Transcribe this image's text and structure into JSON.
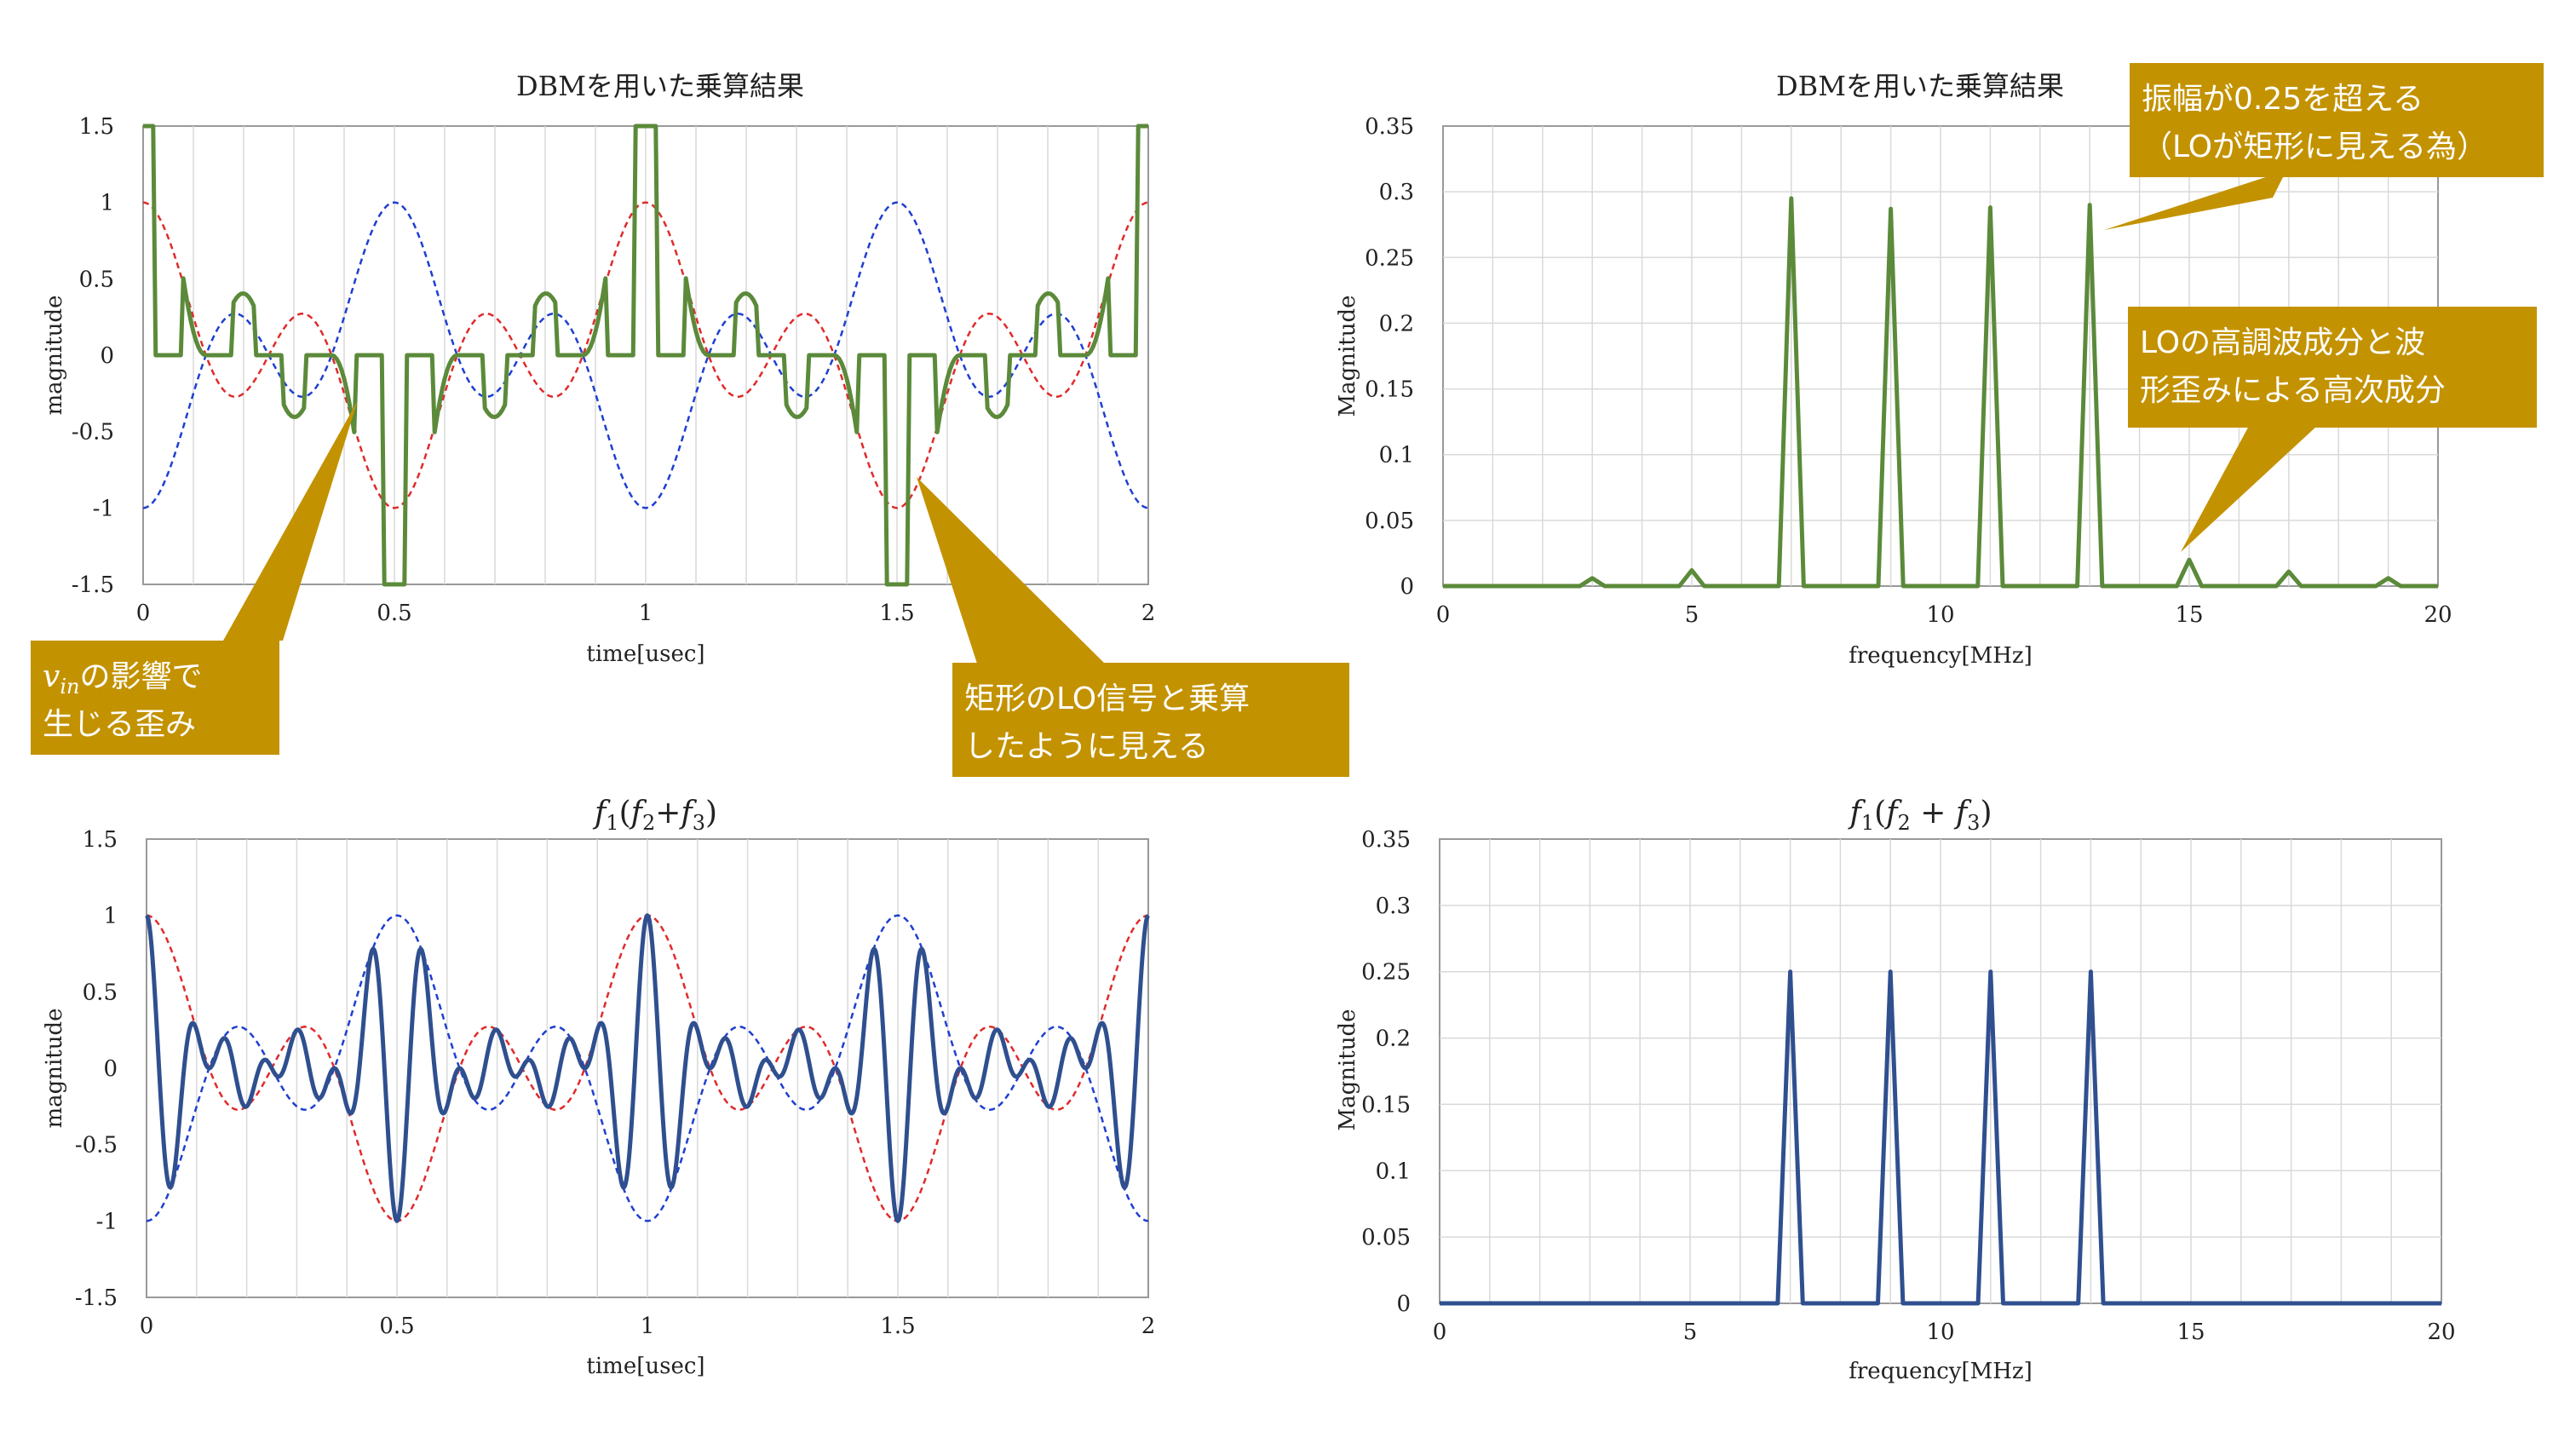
{
  "chart_data": [
    {
      "id": "dbm-time",
      "type": "line",
      "title": "DBMを用いた乗算結果",
      "xlabel": "time[usec]",
      "ylabel": "magnitude",
      "xlim": [
        0,
        2
      ],
      "ylim": [
        -1.5,
        1.5
      ],
      "x_ticks": [
        "0",
        "0.5",
        "1",
        "1.5",
        "2"
      ],
      "y_ticks": [
        "-1.5",
        "-1",
        "-0.5",
        "0",
        "0.5",
        "1",
        "1.5"
      ],
      "grid": "vertical",
      "legend": "none",
      "series": [
        {
          "color": "#e02b2b",
          "style": "dashed",
          "formula": "cos(2*pi*1*t)*cos(2*pi*2*t)"
        },
        {
          "color": "#1f3fd0",
          "style": "dashed",
          "formula": "-cos(2*pi*1*t)*cos(2*pi*2*t)"
        },
        {
          "color": "#5b8a3a",
          "style": "solid",
          "formula": "cos(2*pi*2*t)*(cos(2*pi*1*t)+cos(2*pi*3*t))*sign(cos(2*pi*10*t))",
          "sample_step": 0.005
        }
      ]
    },
    {
      "id": "dbm-freq",
      "type": "line",
      "title": "DBMを用いた乗算結果",
      "xlabel": "frequency[MHz]",
      "ylabel": "Magnitude",
      "xlim": [
        0,
        20
      ],
      "ylim": [
        0,
        0.35
      ],
      "x_ticks": [
        "0",
        "5",
        "10",
        "15",
        "20"
      ],
      "y_ticks": [
        "0",
        "0.05",
        "0.1",
        "0.15",
        "0.2",
        "0.25",
        "0.3",
        "0.35"
      ],
      "grid": "both",
      "legend": "none",
      "series": [
        {
          "color": "#5b8a3a",
          "style": "solid",
          "peaks": [
            [
              3,
              0.006
            ],
            [
              5,
              0.012
            ],
            [
              7,
              0.295
            ],
            [
              9,
              0.287
            ],
            [
              11,
              0.288
            ],
            [
              13,
              0.29
            ],
            [
              15,
              0.02
            ],
            [
              17,
              0.011
            ],
            [
              19,
              0.006
            ]
          ],
          "peak_halfwidth": 0.25
        }
      ]
    },
    {
      "id": "ideal-time",
      "type": "line",
      "title": "f1(f2+f3)",
      "xlabel": "time[usec]",
      "ylabel": "magnitude",
      "xlim": [
        0,
        2
      ],
      "ylim": [
        -1.5,
        1.5
      ],
      "x_ticks": [
        "0",
        "0.5",
        "1",
        "1.5",
        "2"
      ],
      "y_ticks": [
        "-1.5",
        "-1",
        "-0.5",
        "0",
        "0.5",
        "1",
        "1.5"
      ],
      "grid": "vertical",
      "legend": "none",
      "series": [
        {
          "color": "#e02b2b",
          "style": "dashed",
          "formula": "cos(2*pi*1*t)*cos(2*pi*2*t)"
        },
        {
          "color": "#1f3fd0",
          "style": "dashed",
          "formula": "-cos(2*pi*1*t)*cos(2*pi*2*t)"
        },
        {
          "color": "#2f4f8f",
          "style": "solid",
          "formula": "cos(2*pi*10*t)*cos(2*pi*1*t)*cos(2*pi*2*t)",
          "sample_step": 0.002
        }
      ]
    },
    {
      "id": "ideal-freq",
      "type": "line",
      "title": "f1(f2 + f3)",
      "xlabel": "frequency[MHz]",
      "ylabel": "Magnitude",
      "xlim": [
        0,
        20
      ],
      "ylim": [
        0,
        0.35
      ],
      "x_ticks": [
        "0",
        "5",
        "10",
        "15",
        "20"
      ],
      "y_ticks": [
        "0",
        "0.05",
        "0.1",
        "0.15",
        "0.2",
        "0.25",
        "0.3",
        "0.35"
      ],
      "grid": "both",
      "legend": "none",
      "series": [
        {
          "color": "#2f4f8f",
          "style": "solid",
          "peaks": [
            [
              7,
              0.25
            ],
            [
              9,
              0.25
            ],
            [
              11,
              0.25
            ],
            [
              13,
              0.25
            ]
          ],
          "peak_halfwidth": 0.25
        }
      ]
    }
  ],
  "annotations": {
    "vin": {
      "line1_suffix": "の影響で",
      "line2": "生じる歪み",
      "var": "v",
      "sub": "in"
    },
    "rect": {
      "line1": "矩形のLO信号と乗算",
      "line2": "したように見える"
    },
    "amp": {
      "line1": "振幅が0.25を超える",
      "line2": "（LOが矩形に見える為）"
    },
    "harm": {
      "line1": "LOの高調波成分と波",
      "line2": "形歪みによる高次成分"
    },
    "fill": "#c39200",
    "text_color": "#ffffff"
  }
}
